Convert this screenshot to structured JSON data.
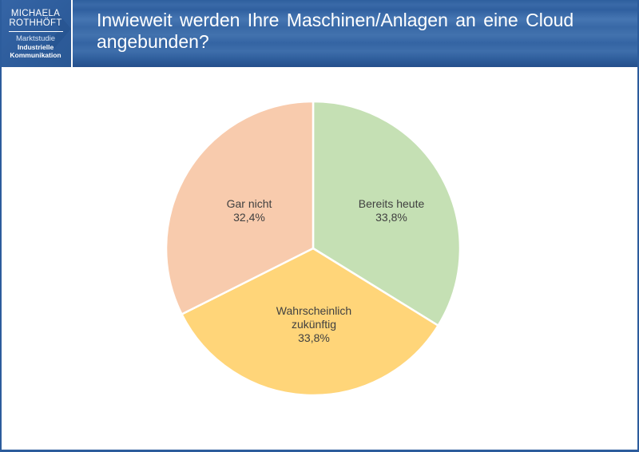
{
  "logo": {
    "line1": "MICHAELA",
    "line2": "ROTHHÖFT",
    "line3": "Marktstudie",
    "line4": "Industrielle",
    "line5": "Kommunikation"
  },
  "header": {
    "title": "Inwieweit werden Ihre Maschinen/Anlagen an eine Cloud angebunden?"
  },
  "colors": {
    "header_blue": "#3868a6",
    "slice_bereits": "#c5e0b4",
    "slice_wahrscheinlich": "#ffd579",
    "slice_gar_nicht": "#f8cbad"
  },
  "chart_data": {
    "type": "pie",
    "title": "Inwieweit werden Ihre Maschinen/Anlagen an eine Cloud angebunden?",
    "categories": [
      "Bereits heute",
      "Wahrscheinlich zukünftig",
      "Gar nicht"
    ],
    "values": [
      33.8,
      33.8,
      32.4
    ],
    "unit": "%",
    "colors": [
      "#c5e0b4",
      "#ffd579",
      "#f8cbad"
    ],
    "labels": [
      {
        "name": "Bereits heute",
        "value_text": "33,8%"
      },
      {
        "name": "Wahrscheinlich zukünftig",
        "name_line1": "Wahrscheinlich",
        "name_line2": "zukünftig",
        "value_text": "33,8%"
      },
      {
        "name": "Gar nicht",
        "value_text": "32,4%"
      }
    ],
    "start_angle_deg": 0,
    "direction": "clockwise",
    "legend": "none (data labels inside slices)"
  }
}
